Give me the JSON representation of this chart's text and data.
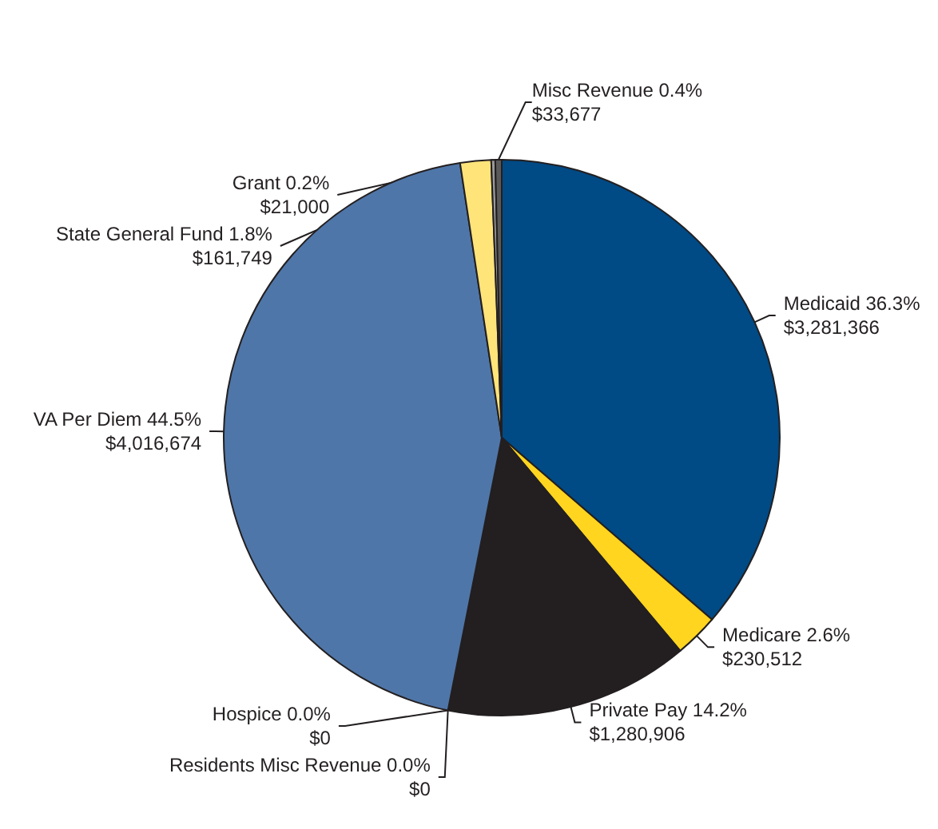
{
  "chart_data": {
    "type": "pie",
    "categories": [
      "Medicaid",
      "Medicare",
      "Private Pay",
      "Hospice",
      "Residents Misc Revenue",
      "VA Per Diem",
      "State General Fund",
      "Grant",
      "Misc Revenue"
    ],
    "values": [
      3281366,
      230512,
      1280906,
      0,
      0,
      4016674,
      161749,
      21000,
      33677
    ],
    "value_labels": [
      "36.3%\n$3,281,366",
      "2.6%\n$230,512",
      "14.2%\n$1,280,906",
      "0.0%\n$0",
      "0.0%\n$0",
      "44.5%\n$4,016,674",
      "1.8%\n$161,749",
      "0.2%\n$21,000",
      "0.4%\n$33,677"
    ],
    "colors": [
      "#004a85",
      "#ffd51f",
      "#231f20",
      "#ffffff",
      "#ffffff",
      "#4f76a8",
      "#ffe47a",
      "#9a9a9a",
      "#5a5a5a"
    ]
  }
}
